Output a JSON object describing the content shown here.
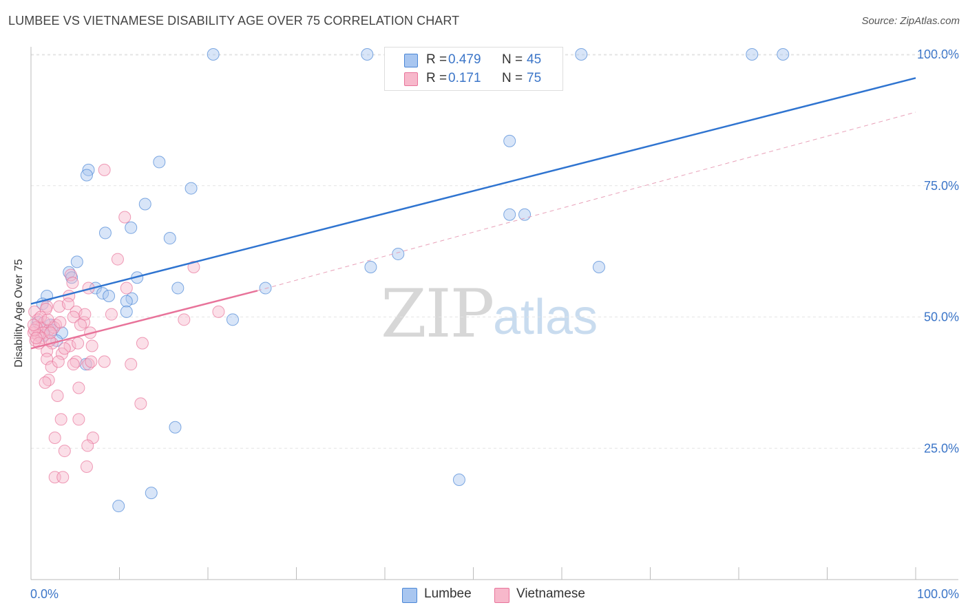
{
  "title": "LUMBEE VS VIETNAMESE DISABILITY AGE OVER 75 CORRELATION CHART",
  "source": "Source: ZipAtlas.com",
  "watermark": {
    "zip": "ZIP",
    "atlas": "atlas"
  },
  "legend": {
    "rows": [
      {
        "r_label": "R =",
        "r_value": "0.479",
        "n_label": "N =",
        "n_value": "45",
        "color": "#a8c6f0"
      },
      {
        "r_label": "R =",
        "r_value": "0.171",
        "n_label": "N =",
        "n_value": "75",
        "color": "#f7b8cb"
      }
    ]
  },
  "bottom_legend": [
    {
      "label": "Lumbee",
      "color": "#a8c6f0"
    },
    {
      "label": "Vietnamese",
      "color": "#f7b8cb"
    }
  ],
  "chart_data": {
    "type": "scatter",
    "title": "LUMBEE VS VIETNAMESE DISABILITY AGE OVER 75 CORRELATION CHART",
    "xlabel": "",
    "ylabel": "Disability Age Over 75",
    "xlim": [
      0,
      100
    ],
    "ylim": [
      0,
      105
    ],
    "x_tick_labels": [
      "0.0%",
      "100.0%"
    ],
    "y_ticks": [
      25,
      50,
      75,
      100
    ],
    "y_tick_labels": [
      "25.0%",
      "50.0%",
      "75.0%",
      "100.0%"
    ],
    "grid": true,
    "legend_placement": "top-center",
    "series": [
      {
        "name": "Lumbee",
        "color": "#4a86d6",
        "fill": "#a8c6f0",
        "trend": {
          "x": [
            0,
            100
          ],
          "y": [
            52.5,
            95.5
          ]
        },
        "points": [
          [
            20.6,
            100
          ],
          [
            38,
            100
          ],
          [
            62.2,
            100
          ],
          [
            81.5,
            100
          ],
          [
            85,
            100
          ],
          [
            54.1,
            83.5
          ],
          [
            14.5,
            79.5
          ],
          [
            6.5,
            78
          ],
          [
            6.3,
            77
          ],
          [
            18.1,
            74.5
          ],
          [
            12.9,
            71.5
          ],
          [
            54.1,
            69.5
          ],
          [
            55.8,
            69.5
          ],
          [
            11.3,
            67
          ],
          [
            8.4,
            66
          ],
          [
            15.7,
            65
          ],
          [
            41.5,
            62
          ],
          [
            5.2,
            60.5
          ],
          [
            38.4,
            59.5
          ],
          [
            64.2,
            59.5
          ],
          [
            4.3,
            58.5
          ],
          [
            4.6,
            57.5
          ],
          [
            12,
            57.5
          ],
          [
            7.3,
            55.5
          ],
          [
            16.6,
            55.5
          ],
          [
            26.5,
            55.5
          ],
          [
            8.1,
            54.5
          ],
          [
            8.8,
            54
          ],
          [
            1.8,
            54
          ],
          [
            11.4,
            53.5
          ],
          [
            10.8,
            53
          ],
          [
            1.3,
            52.5
          ],
          [
            10.8,
            51
          ],
          [
            22.8,
            49.5
          ],
          [
            0.8,
            49
          ],
          [
            2.2,
            48.5
          ],
          [
            2.4,
            47.5
          ],
          [
            3.5,
            47
          ],
          [
            1.5,
            46.5
          ],
          [
            2.9,
            45.5
          ],
          [
            6.2,
            41
          ],
          [
            16.3,
            29
          ],
          [
            13.6,
            16.5
          ],
          [
            48.4,
            19
          ],
          [
            9.9,
            14
          ]
        ]
      },
      {
        "name": "Vietnamese",
        "color": "#e8739a",
        "fill": "#f7b8cb",
        "trend": {
          "x": [
            0,
            25.6
          ],
          "y": [
            44,
            55
          ],
          "dashed_to": [
            100,
            89
          ]
        },
        "points": [
          [
            8.3,
            78
          ],
          [
            10.6,
            69
          ],
          [
            9.8,
            61
          ],
          [
            18.4,
            59.5
          ],
          [
            4.5,
            58
          ],
          [
            4.7,
            56.5
          ],
          [
            6.5,
            55.5
          ],
          [
            10.8,
            55.5
          ],
          [
            4.3,
            54
          ],
          [
            1.8,
            52
          ],
          [
            3.2,
            52
          ],
          [
            5.1,
            51
          ],
          [
            0.4,
            51
          ],
          [
            21.2,
            51
          ],
          [
            9.1,
            50.5
          ],
          [
            4.8,
            50
          ],
          [
            0.8,
            49.5
          ],
          [
            17.3,
            49.5
          ],
          [
            1.5,
            49
          ],
          [
            6,
            49
          ],
          [
            2.8,
            48.5
          ],
          [
            1.1,
            48
          ],
          [
            0.6,
            48
          ],
          [
            2,
            47.5
          ],
          [
            0.3,
            47
          ],
          [
            1.4,
            47
          ],
          [
            6.7,
            47
          ],
          [
            0.8,
            46.5
          ],
          [
            1.2,
            46
          ],
          [
            0.5,
            45.5
          ],
          [
            2.4,
            45
          ],
          [
            12.6,
            45
          ],
          [
            4.4,
            44.5
          ],
          [
            6.9,
            44.5
          ],
          [
            1.8,
            43.5
          ],
          [
            3.5,
            43
          ],
          [
            1.8,
            42
          ],
          [
            5.1,
            41.5
          ],
          [
            8.3,
            41.5
          ],
          [
            11.3,
            41
          ],
          [
            4.8,
            41
          ],
          [
            6.5,
            41
          ],
          [
            2.3,
            40.5
          ],
          [
            2,
            38
          ],
          [
            1.6,
            37.5
          ],
          [
            5.4,
            36.5
          ],
          [
            12.4,
            33.5
          ],
          [
            3,
            35
          ],
          [
            3.4,
            30.5
          ],
          [
            5.4,
            30.5
          ],
          [
            2.7,
            27
          ],
          [
            7,
            27
          ],
          [
            3.8,
            24.5
          ],
          [
            6.4,
            25.5
          ],
          [
            6.3,
            21.5
          ],
          [
            2.7,
            19.5
          ],
          [
            3.6,
            19.5
          ],
          [
            0.9,
            45
          ],
          [
            2.6,
            48
          ],
          [
            1.7,
            51.5
          ],
          [
            0.4,
            47.5
          ],
          [
            3.3,
            49
          ],
          [
            2.1,
            45.5
          ],
          [
            4.2,
            52.5
          ],
          [
            6.1,
            50.5
          ],
          [
            5.6,
            48.5
          ],
          [
            3.8,
            44
          ],
          [
            1.1,
            50
          ],
          [
            0.6,
            46
          ],
          [
            5.3,
            45
          ],
          [
            6.8,
            41.5
          ],
          [
            3.1,
            41.5
          ],
          [
            2.2,
            47
          ],
          [
            1.9,
            49.5
          ],
          [
            0.3,
            48.5
          ]
        ]
      }
    ]
  }
}
